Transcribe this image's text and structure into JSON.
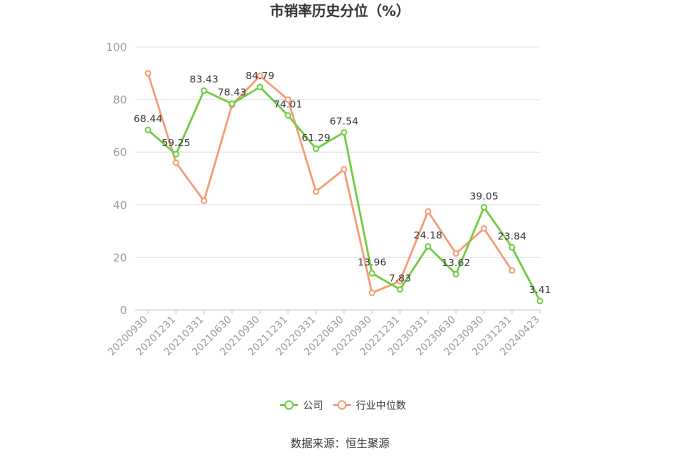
{
  "chart_data": {
    "type": "line",
    "title": "市销率历史分位（%）",
    "source_note": "数据来源：恒生聚源",
    "categories": [
      "20200930",
      "20201231",
      "20210331",
      "20210630",
      "20210930",
      "20211231",
      "20220331",
      "20220630",
      "20220930",
      "20221231",
      "20230331",
      "20230630",
      "20230930",
      "20231231",
      "20240423"
    ],
    "ylim": [
      0,
      100
    ],
    "yticks": [
      0,
      20,
      40,
      60,
      80,
      100
    ],
    "grid": true,
    "legend_position": "bottom",
    "series": [
      {
        "name": "公司",
        "color": "#6dcc3c",
        "values": [
          68.44,
          59.25,
          83.43,
          78.43,
          84.79,
          74.01,
          61.29,
          67.54,
          13.96,
          7.83,
          24.18,
          13.62,
          39.05,
          23.84,
          3.41
        ],
        "labels": [
          "68.44",
          "59.25",
          "83.43",
          "78.43",
          "84.79",
          "74.01",
          "61.29",
          "67.54",
          "13.96",
          "7.83",
          "24.18",
          "13.62",
          "39.05",
          "23.84",
          "3.41"
        ]
      },
      {
        "name": "行业中位数",
        "color": "#f59a72",
        "values": [
          90,
          56,
          41.5,
          78,
          89,
          80,
          45,
          53.5,
          6.5,
          11,
          37.5,
          21.5,
          31,
          15,
          null
        ]
      }
    ]
  }
}
